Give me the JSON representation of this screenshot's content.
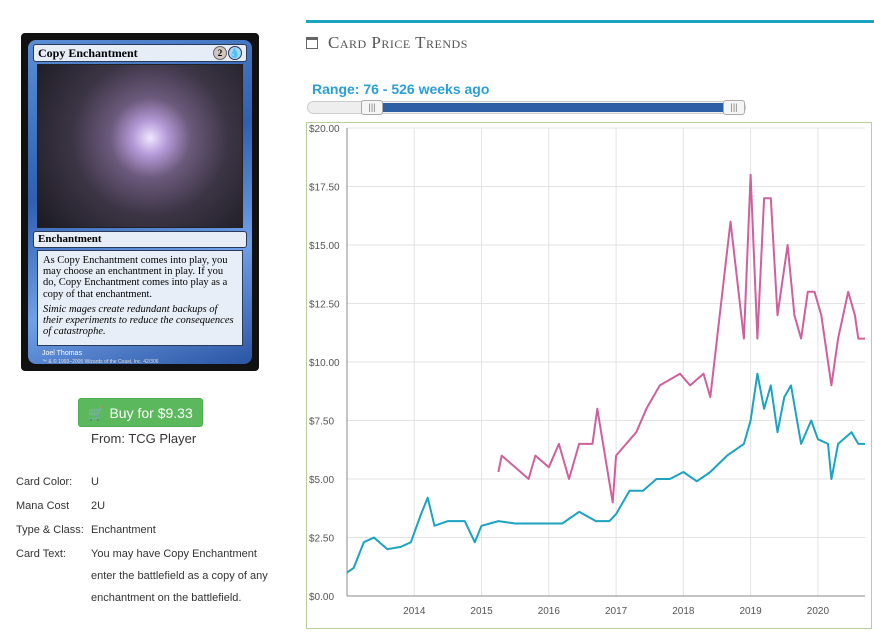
{
  "card": {
    "name": "Copy Enchantment",
    "mana_generic": "2",
    "mana_colored": "U",
    "type_line": "Enchantment",
    "rules_text": "As Copy Enchantment comes into play, you may choose an enchantment in play. If you do, Copy Enchantment comes into play as a copy of that enchantment.",
    "flavor_text": "Simic mages create redundant backups of their experiments to reduce the consequences of catastrophe.",
    "artist": "Joel Thomas",
    "copyright": "™ & © 1993–2005 Wizards of the Coast, Inc. 42/306"
  },
  "buy": {
    "label": "Buy for $9.33",
    "source": "From: TCG Player",
    "icon": "shopping-cart-icon",
    "color": "#5cb85c"
  },
  "details": {
    "color_label": "Card Color:",
    "color_value": "U",
    "mana_label": "Mana Cost",
    "mana_value": "2U",
    "type_label": "Type & Class:",
    "type_value": "Enchantment",
    "text_label": "Card Text:",
    "text_value": "You may have Copy Enchantment enter the battlefield as a copy of any enchantment on the battlefield."
  },
  "trends": {
    "title": "Card Price Trends",
    "icon": "calendar-icon",
    "accent": "#1ba3c0",
    "range_label": "Range: 76 - 526 weeks ago"
  },
  "chart_data": {
    "type": "line",
    "title": "",
    "xlabel": "",
    "ylabel": "",
    "ylim": [
      0,
      20
    ],
    "xlim": [
      2013.0,
      2020.7
    ],
    "y_ticks": [
      "$0.00",
      "$2.50",
      "$5.00",
      "$7.50",
      "$10.00",
      "$12.50",
      "$15.00",
      "$17.50",
      "$20.00"
    ],
    "x_ticks": [
      "2014",
      "2015",
      "2016",
      "2017",
      "2018",
      "2019",
      "2020"
    ],
    "grid": true,
    "series": [
      {
        "color": "#d0609c",
        "points": [
          [
            2015.25,
            5.3
          ],
          [
            2015.3,
            6.0
          ],
          [
            2015.5,
            5.5
          ],
          [
            2015.7,
            5.0
          ],
          [
            2015.8,
            6.0
          ],
          [
            2016.0,
            5.5
          ],
          [
            2016.15,
            6.5
          ],
          [
            2016.3,
            5.0
          ],
          [
            2016.45,
            6.5
          ],
          [
            2016.65,
            6.5
          ],
          [
            2016.72,
            8.0
          ],
          [
            2016.95,
            4.0
          ],
          [
            2017.0,
            6.0
          ],
          [
            2017.15,
            6.5
          ],
          [
            2017.3,
            7.0
          ],
          [
            2017.45,
            8.0
          ],
          [
            2017.65,
            9.0
          ],
          [
            2017.95,
            9.5
          ],
          [
            2018.1,
            9.0
          ],
          [
            2018.3,
            9.5
          ],
          [
            2018.4,
            8.5
          ],
          [
            2018.7,
            16.0
          ],
          [
            2018.9,
            11.0
          ],
          [
            2019.0,
            18.0
          ],
          [
            2019.1,
            11.0
          ],
          [
            2019.2,
            17.0
          ],
          [
            2019.3,
            17.0
          ],
          [
            2019.4,
            12.0
          ],
          [
            2019.55,
            15.0
          ],
          [
            2019.65,
            12.0
          ],
          [
            2019.75,
            11.0
          ],
          [
            2019.85,
            13.0
          ],
          [
            2019.95,
            13.0
          ],
          [
            2020.05,
            12.0
          ],
          [
            2020.2,
            9.0
          ],
          [
            2020.3,
            11.0
          ],
          [
            2020.45,
            13.0
          ],
          [
            2020.55,
            12.0
          ],
          [
            2020.6,
            11.0
          ],
          [
            2020.7,
            11.0
          ]
        ]
      },
      {
        "color": "#1ba3c0",
        "points": [
          [
            2013.0,
            1.0
          ],
          [
            2013.1,
            1.2
          ],
          [
            2013.25,
            2.3
          ],
          [
            2013.4,
            2.5
          ],
          [
            2013.6,
            2.0
          ],
          [
            2013.8,
            2.1
          ],
          [
            2013.95,
            2.3
          ],
          [
            2014.1,
            3.5
          ],
          [
            2014.2,
            4.2
          ],
          [
            2014.3,
            3.0
          ],
          [
            2014.5,
            3.2
          ],
          [
            2014.75,
            3.2
          ],
          [
            2014.9,
            2.3
          ],
          [
            2015.0,
            3.0
          ],
          [
            2015.25,
            3.2
          ],
          [
            2015.5,
            3.1
          ],
          [
            2015.8,
            3.1
          ],
          [
            2016.2,
            3.1
          ],
          [
            2016.45,
            3.6
          ],
          [
            2016.7,
            3.2
          ],
          [
            2016.9,
            3.2
          ],
          [
            2017.0,
            3.5
          ],
          [
            2017.2,
            4.5
          ],
          [
            2017.4,
            4.5
          ],
          [
            2017.6,
            5.0
          ],
          [
            2017.8,
            5.0
          ],
          [
            2018.0,
            5.3
          ],
          [
            2018.2,
            4.9
          ],
          [
            2018.4,
            5.3
          ],
          [
            2018.65,
            6.0
          ],
          [
            2018.9,
            6.5
          ],
          [
            2019.0,
            7.5
          ],
          [
            2019.1,
            9.5
          ],
          [
            2019.2,
            8.0
          ],
          [
            2019.3,
            9.0
          ],
          [
            2019.4,
            7.0
          ],
          [
            2019.5,
            8.5
          ],
          [
            2019.6,
            9.0
          ],
          [
            2019.75,
            6.5
          ],
          [
            2019.9,
            7.5
          ],
          [
            2020.0,
            6.7
          ],
          [
            2020.15,
            6.5
          ],
          [
            2020.2,
            5.0
          ],
          [
            2020.3,
            6.5
          ],
          [
            2020.5,
            7.0
          ],
          [
            2020.6,
            6.5
          ],
          [
            2020.7,
            6.5
          ]
        ]
      }
    ]
  }
}
